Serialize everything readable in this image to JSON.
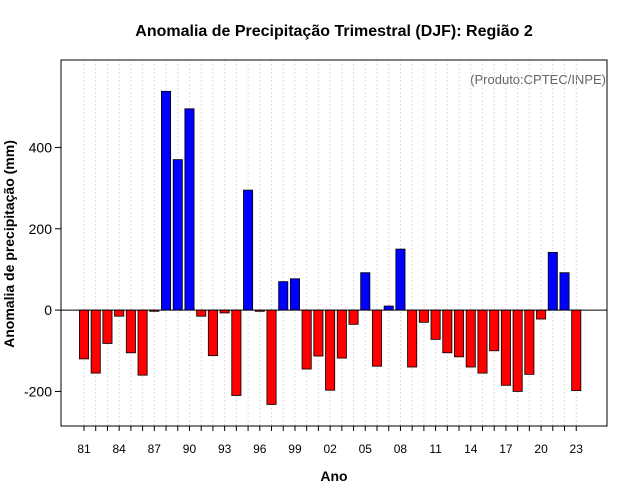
{
  "chart_data": {
    "type": "bar",
    "title": "Anomalia de Precipitação Trimestral (DJF): Região 2",
    "xlabel": "Ano",
    "ylabel": "Anomalia de precipitação (mm)",
    "credit": "(Produto:CPTEC/INPE)",
    "ylim": [
      -285,
      615
    ],
    "yticks": [
      -200,
      0,
      200,
      400
    ],
    "xtick_labels": [
      "81",
      "84",
      "87",
      "90",
      "93",
      "96",
      "99",
      "02",
      "05",
      "08",
      "11",
      "14",
      "17",
      "20",
      "23"
    ],
    "xtick_every": 3,
    "grid": "vertical dotted",
    "colors": {
      "positive": "#0000ff",
      "negative": "#ff0000",
      "grid": "#d3d3d3",
      "axis": "#000000"
    },
    "categories": [
      "1981",
      "1982",
      "1983",
      "1984",
      "1985",
      "1986",
      "1987",
      "1988",
      "1989",
      "1990",
      "1991",
      "1992",
      "1993",
      "1994",
      "1995",
      "1996",
      "1997",
      "1998",
      "1999",
      "2000",
      "2001",
      "2002",
      "2003",
      "2004",
      "2005",
      "2006",
      "2007",
      "2008",
      "2009",
      "2010",
      "2011",
      "2012",
      "2013",
      "2014",
      "2015",
      "2016",
      "2017",
      "2018",
      "2019",
      "2020",
      "2021",
      "2022",
      "2023"
    ],
    "values": [
      -120,
      -155,
      -82,
      -15,
      -105,
      -160,
      -3,
      538,
      370,
      495,
      -15,
      -112,
      -7,
      -210,
      295,
      -3,
      -232,
      70,
      77,
      -145,
      -113,
      -197,
      -118,
      -35,
      92,
      -138,
      10,
      150,
      -140,
      -30,
      -72,
      -105,
      -115,
      -140,
      -155,
      -100,
      -185,
      -200,
      -158,
      -22,
      142,
      92,
      -198
    ]
  }
}
